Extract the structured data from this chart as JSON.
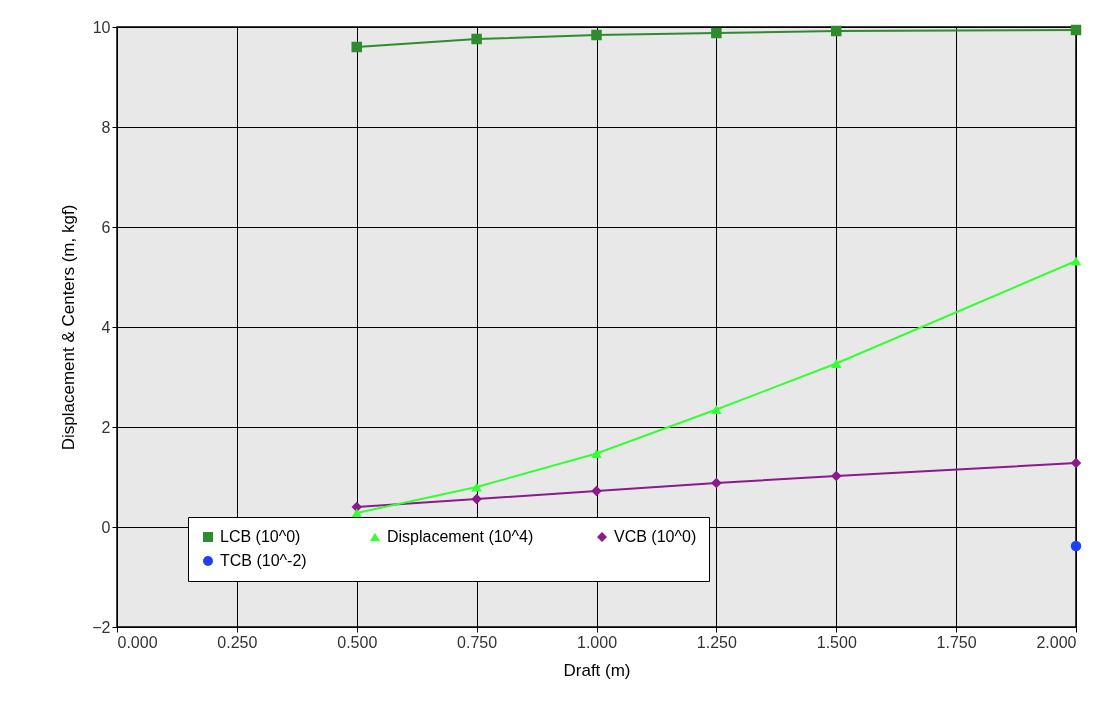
{
  "chart_data": {
    "type": "line",
    "xlabel": "Draft (m)",
    "ylabel": "Displacement & Centers (m, kgf)",
    "x": [
      0.5,
      0.75,
      1.0,
      1.25,
      1.5,
      2.0
    ],
    "series": [
      {
        "name": "LCB (10^0)",
        "color": "#2e8b2e",
        "marker": "square",
        "values": [
          9.6,
          9.76,
          9.84,
          9.88,
          9.92,
          9.94
        ]
      },
      {
        "name": "VCB (10^0)",
        "color": "#8b1a8b",
        "marker": "diamond",
        "values": [
          0.4,
          0.56,
          0.72,
          0.88,
          1.02,
          1.28
        ]
      },
      {
        "name": "Displacement (10^4)",
        "color": "#33ff33",
        "marker": "triangle",
        "values": [
          0.28,
          0.8,
          1.47,
          2.35,
          3.27,
          5.32
        ]
      },
      {
        "name": "TCB (10^-2)",
        "color": "#1f3fff",
        "marker": "circle",
        "values": [
          null,
          null,
          null,
          null,
          null,
          -0.38
        ]
      }
    ],
    "xlim": [
      0,
      2
    ],
    "xticks": [
      {
        "value": 0,
        "label": "0.000"
      },
      {
        "value": 0.25,
        "label": "0.250"
      },
      {
        "value": 0.5,
        "label": "0.500"
      },
      {
        "value": 0.75,
        "label": "0.750"
      },
      {
        "value": 1.0,
        "label": "1.000"
      },
      {
        "value": 1.25,
        "label": "1.250"
      },
      {
        "value": 1.5,
        "label": "1.500"
      },
      {
        "value": 1.75,
        "label": "1.750"
      },
      {
        "value": 2.0,
        "label": "2.000"
      }
    ],
    "ylim": [
      -2,
      10
    ],
    "yticks": [
      -2,
      0,
      2,
      4,
      6,
      8,
      10
    ],
    "grid": true,
    "legend": "bottom",
    "line_style": "solid"
  }
}
